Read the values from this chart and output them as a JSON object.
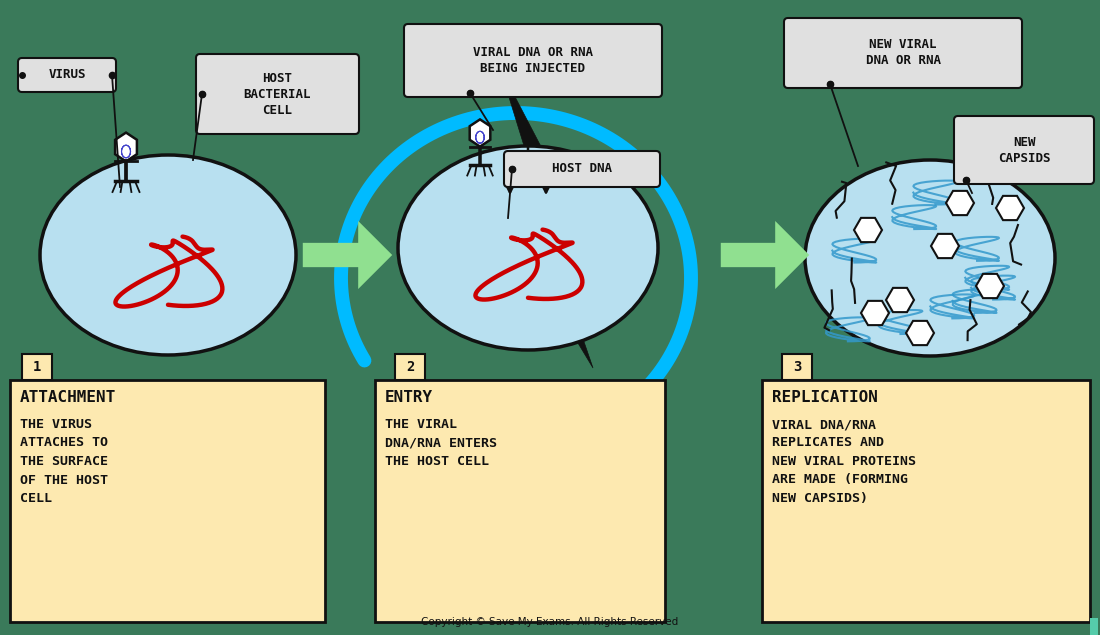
{
  "bg_color": "#3a7a5a",
  "cell_fill": "#b8e0f0",
  "cell_edge": "#111111",
  "dna_color": "#cc0000",
  "box_fill": "#fde9b0",
  "box_edge": "#111111",
  "arrow_green": "#90e090",
  "arrow_blue": "#00bbff",
  "black": "#111111",
  "white": "#ffffff",
  "callout_fill": "#e0e0e0",
  "callout_edge": "#111111",
  "step1_title": "ATTACHMENT",
  "step1_body": "THE VIRUS\nATTACHES TO\nTHE SURFACE\nOF THE HOST\nCELL",
  "step2_title": "ENTRY",
  "step2_body": "THE VIRAL\nDNA/RNA ENTERS\nTHE HOST CELL",
  "step3_title": "REPLICATION",
  "step3_body": "VIRAL DNA/RNA\nREPLICATES AND\nNEW VIRAL PROTEINS\nARE MADE (FORMING\nNEW CAPSIDS)",
  "lbl_virus": "VIRUS",
  "lbl_host": "HOST\nBACTERIAL\nCELL",
  "lbl_viral_dna": "VIRAL DNA OR RNA\nBEING INJECTED",
  "lbl_host_dna": "HOST DNA",
  "lbl_new_dna": "NEW VIRAL\nDNA OR RNA",
  "lbl_new_cap": "NEW\nCAPSIDS",
  "copyright": "Copyright © Save My Exams. All Rights Reserved",
  "teal_bar": "#55ccaa"
}
